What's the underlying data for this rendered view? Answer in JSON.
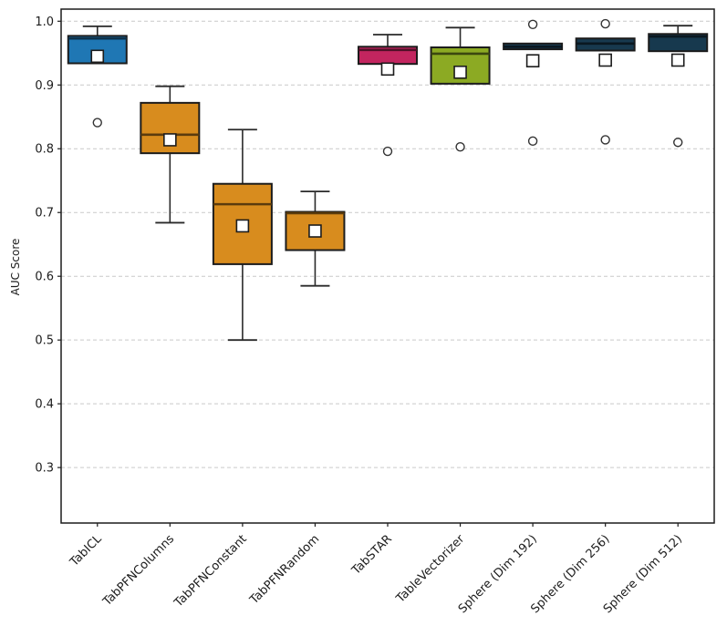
{
  "chart_data": {
    "type": "boxplot",
    "title": "",
    "xlabel": "",
    "ylabel": "AUC Score",
    "ylim": [
      0.213,
      1.019
    ],
    "yticks": [
      0.3,
      0.4,
      0.5,
      0.6,
      0.7,
      0.8,
      0.9,
      1.0
    ],
    "grid": "horizontal-dashed",
    "legend": "none",
    "categories": [
      "TabICL",
      "TabPFNColumns",
      "TabPFNConstant",
      "TabPFNRandom",
      "TabSTAR",
      "TableVectorizer",
      "Sphere (Dim 192)",
      "Sphere (Dim 256)",
      "Sphere (Dim 512)"
    ],
    "series": [
      {
        "name": "TabICL",
        "color": "#1f77b4",
        "whisker_low": 0.934,
        "q1": 0.934,
        "median": 0.973,
        "q3": 0.977,
        "whisker_high": 0.992,
        "mean": 0.945,
        "outliers": [
          0.841
        ]
      },
      {
        "name": "TabPFNColumns",
        "color": "#d88c1e",
        "whisker_low": 0.684,
        "q1": 0.793,
        "median": 0.822,
        "q3": 0.872,
        "whisker_high": 0.898,
        "mean": 0.814,
        "outliers": []
      },
      {
        "name": "TabPFNConstant",
        "color": "#d88c1e",
        "whisker_low": 0.5,
        "q1": 0.619,
        "median": 0.713,
        "q3": 0.745,
        "whisker_high": 0.83,
        "mean": 0.679,
        "outliers": []
      },
      {
        "name": "TabPFNRandom",
        "color": "#d88c1e",
        "whisker_low": 0.585,
        "q1": 0.641,
        "median": 0.699,
        "q3": 0.701,
        "whisker_high": 0.733,
        "mean": 0.671,
        "outliers": []
      },
      {
        "name": "TabSTAR",
        "color": "#c3255f",
        "whisker_low": 0.933,
        "q1": 0.933,
        "median": 0.955,
        "q3": 0.96,
        "whisker_high": 0.979,
        "mean": 0.925,
        "outliers": [
          0.796
        ]
      },
      {
        "name": "TableVectorizer",
        "color": "#8caa23",
        "whisker_low": 0.902,
        "q1": 0.902,
        "median": 0.949,
        "q3": 0.959,
        "whisker_high": 0.99,
        "mean": 0.92,
        "outliers": [
          0.803
        ]
      },
      {
        "name": "Sphere (Dim 192)",
        "color": "#17394e",
        "whisker_low": 0.956,
        "q1": 0.956,
        "median": 0.96,
        "q3": 0.965,
        "whisker_high": 0.965,
        "mean": 0.938,
        "outliers": [
          0.995,
          0.812
        ]
      },
      {
        "name": "Sphere (Dim 256)",
        "color": "#17394e",
        "whisker_low": 0.954,
        "q1": 0.954,
        "median": 0.965,
        "q3": 0.973,
        "whisker_high": 0.973,
        "mean": 0.939,
        "outliers": [
          0.996,
          0.814
        ]
      },
      {
        "name": "Sphere (Dim 512)",
        "color": "#17394e",
        "whisker_low": 0.953,
        "q1": 0.953,
        "median": 0.976,
        "q3": 0.98,
        "whisker_high": 0.993,
        "mean": 0.939,
        "outliers": [
          0.81
        ]
      }
    ]
  },
  "style_colors": {
    "grid": "#c9c9c9",
    "spine": "#1c1c1c",
    "whisker": "#2a2a2a",
    "box_edge": "#1c1c1c",
    "mean_fill": "#ffffff",
    "outlier_stroke": "#333333",
    "text": "#1c1c1c"
  }
}
